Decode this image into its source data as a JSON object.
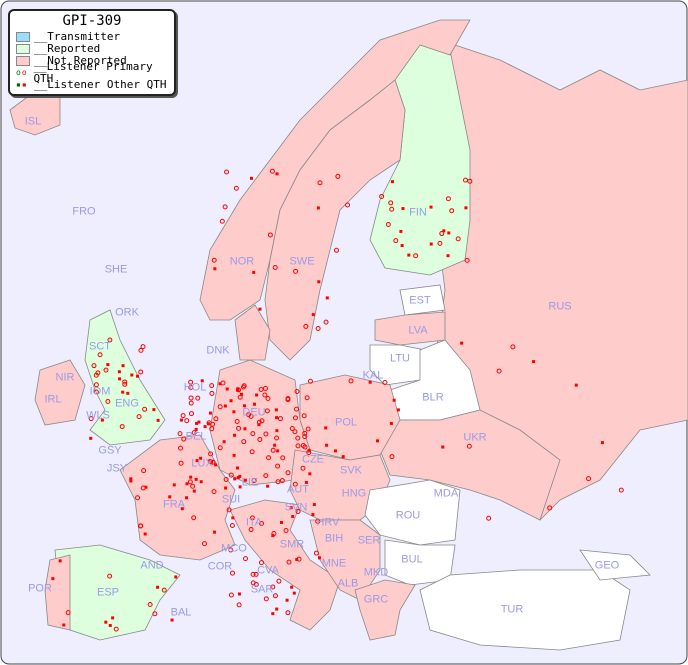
{
  "legend": {
    "title": "GPI-309",
    "items": [
      {
        "label": "__Transmitter",
        "color": "#99ddff"
      },
      {
        "label": "__Reported",
        "color": "#ddffdd"
      },
      {
        "label": "__Not Reported",
        "color": "#ffcccc"
      },
      {
        "label": "__Listener Primary QTH",
        "marker": "open-circle"
      },
      {
        "label": "__Listener Other QTH",
        "marker": "filled-square"
      }
    ]
  },
  "colors": {
    "sea": "#eeeeff",
    "reported": "#ddffdd",
    "not_reported": "#ffcccc",
    "no_data": "#ffffff",
    "listener": "#ff0000",
    "label": "#9a9ae8"
  },
  "countries": [
    "ISL",
    "FRO",
    "SHE",
    "ORK",
    "NOR",
    "SWE",
    "FIN",
    "EST",
    "LVA",
    "LTU",
    "RUS",
    "DNK",
    "KAL",
    "BLR",
    "IRL",
    "NIR",
    "SCT",
    "IOM",
    "WLS",
    "ENG",
    "HOL",
    "BEL",
    "DEU",
    "POL",
    "UKR",
    "GSY",
    "JSY",
    "LUX",
    "CZE",
    "SVK",
    "FRA",
    "LIE",
    "AUT",
    "HNG",
    "MDA",
    "SUI",
    "SVN",
    "HRV",
    "ROU",
    "ITA",
    "BIH",
    "SER",
    "SMR",
    "BUL",
    "MCO",
    "COR",
    "CVA",
    "MNE",
    "MKD",
    "GEO",
    "AND",
    "POR",
    "ESP",
    "ALB",
    "SAR",
    "GRC",
    "BAL",
    "TUR"
  ]
}
